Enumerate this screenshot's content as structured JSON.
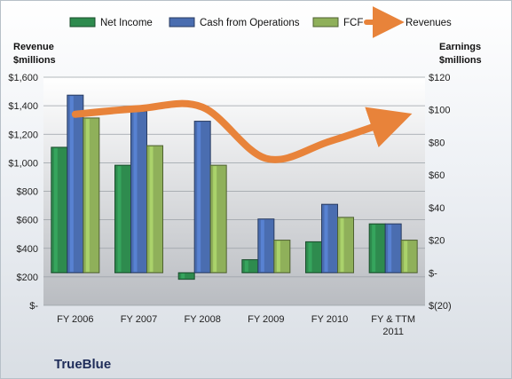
{
  "chart_data": {
    "type": "bar",
    "title": "TrueBlue",
    "categories": [
      "FY 2006",
      "FY 2007",
      "FY 2008",
      "FY 2009",
      "FY 2010",
      "FY & TTM|2011"
    ],
    "left_axis": {
      "title_line1": "Revenue",
      "title_line2": "$millions",
      "ylim": [
        0,
        1600
      ],
      "ticks": [
        0,
        200,
        400,
        600,
        800,
        1000,
        1200,
        1400,
        1600
      ],
      "tick_labels": [
        "$-",
        "$200",
        "$400",
        "$600",
        "$800",
        "$1,000",
        "$1,200",
        "$1,400",
        "$1,600"
      ]
    },
    "right_axis": {
      "title_line1": "Earnings",
      "title_line2": "$millions",
      "ylim": [
        -20,
        120
      ],
      "ticks": [
        -20,
        0,
        20,
        40,
        60,
        80,
        100,
        120
      ],
      "tick_labels": [
        "$(20)",
        "$-",
        "$20",
        "$40",
        "$60",
        "$80",
        "$100",
        "$120"
      ]
    },
    "series": [
      {
        "name": "Net Income",
        "kind": "bar",
        "axis": "right",
        "color": "#2e8b4e",
        "values": [
          77,
          66,
          -4,
          8,
          19,
          30
        ]
      },
      {
        "name": "Cash from Operations",
        "kind": "bar",
        "axis": "right",
        "color": "#4a6db0",
        "values": [
          109,
          99,
          93,
          33,
          42,
          30
        ]
      },
      {
        "name": "FCF",
        "kind": "bar",
        "axis": "right",
        "color": "#8fb05a",
        "values": [
          95,
          78,
          66,
          20,
          34,
          20
        ]
      },
      {
        "name": "Revenues",
        "kind": "line",
        "axis": "left",
        "color": "#e8833a",
        "values": [
          1340,
          1380,
          1390,
          1030,
          1150,
          1300
        ]
      }
    ],
    "grid": true,
    "legend_position": "top"
  }
}
